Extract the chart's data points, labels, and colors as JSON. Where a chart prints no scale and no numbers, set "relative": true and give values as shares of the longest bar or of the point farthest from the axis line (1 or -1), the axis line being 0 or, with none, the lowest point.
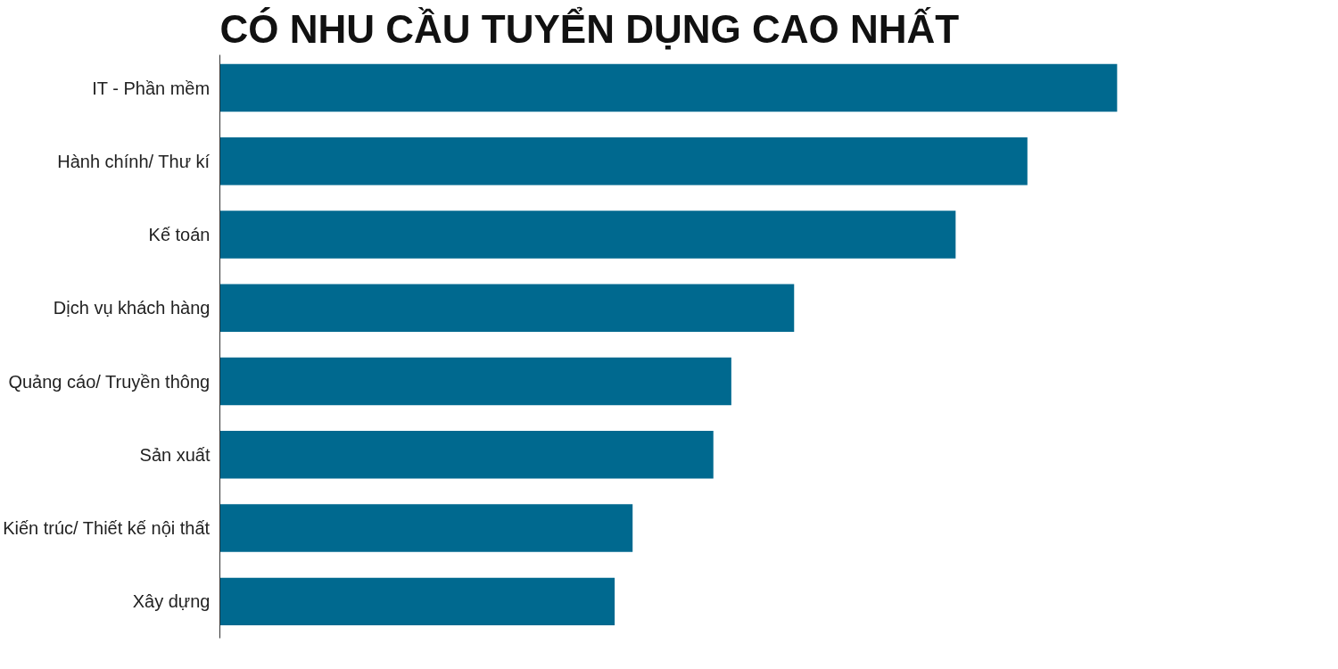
{
  "chart_data": {
    "type": "bar",
    "orientation": "horizontal",
    "relative": true,
    "title": "CÓ NHU CẦU TUYỂN DỤNG CAO NHẤT",
    "categories": [
      "IT - Phần mềm",
      "Hành chính/ Thư kí",
      "Kế toán",
      "Dịch vụ khách hàng",
      "Quảng cáo/ Truyền thông",
      "Sản xuất",
      "Kiến trúc/ Thiết kế nội thất",
      "Xây dựng"
    ],
    "values": [
      1,
      0.9,
      0.82,
      0.64,
      0.57,
      0.55,
      0.46,
      0.44
    ],
    "color": "#00698f",
    "grid": false
  }
}
